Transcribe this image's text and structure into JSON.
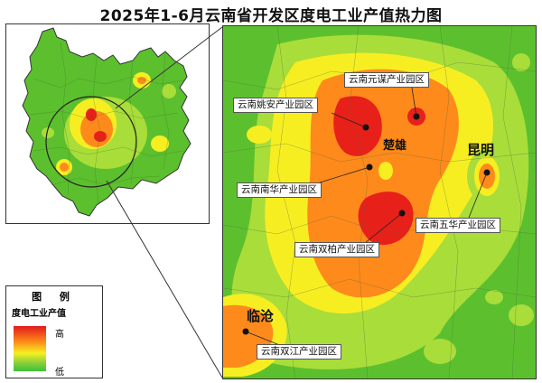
{
  "title": "2025年1-6月云南省开发区度电工业产值热力图",
  "legend": {
    "title": "图 例",
    "subtitle": "度电工业产值",
    "high": "高",
    "low": "低"
  },
  "colors": {
    "red": "#e8201a",
    "orange": "#ff8a1c",
    "yellow": "#f7ee22",
    "lightgreen": "#a9dd3a",
    "green": "#5cc02e"
  },
  "cities": {
    "chuxiong": "楚雄",
    "kunming": "昆明",
    "lincang": "临沧"
  },
  "parks": {
    "yuanmou": "云南元谋产业园区",
    "yaoan": "云南姚安产业园区",
    "nanhua": "云南南华产业园区",
    "wuhua": "云南五华产业园区",
    "shuangbai": "云南双柏产业园区",
    "shuangjiang": "云南双江产业园区"
  }
}
